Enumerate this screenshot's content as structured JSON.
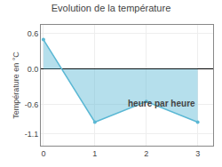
{
  "chart_data": {
    "type": "area",
    "title": "Evolution de la température",
    "ylabel": "Température en °C",
    "annotations": [
      "heure par heure"
    ],
    "x": [
      0,
      1,
      2,
      3
    ],
    "values": [
      0.5,
      -0.9,
      -0.55,
      -0.9
    ],
    "color": "#5bb8d4",
    "marker": "circle",
    "xlim": [
      -0.05,
      3.3
    ],
    "ylim": [
      -1.3,
      0.75
    ],
    "xticks": [
      0,
      1,
      2,
      3
    ],
    "yticks": [
      -1.1,
      -0.6,
      {
        "value": 0,
        "label": "0.0"
      },
      0.6
    ],
    "grid": true
  }
}
